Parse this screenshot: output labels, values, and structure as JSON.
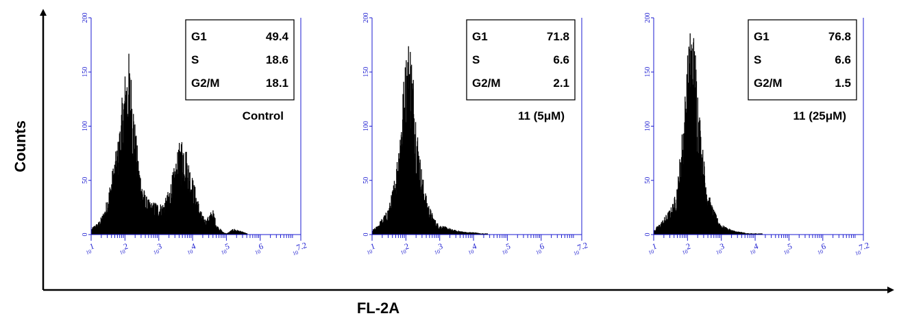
{
  "figure": {
    "ylabel": "Counts",
    "xlabel": "FL-2A"
  },
  "chart_data": [
    {
      "type": "area",
      "condition": "Control",
      "ylim": [
        0,
        200
      ],
      "y_ticks": [
        "0",
        "50",
        "100",
        "150",
        "200"
      ],
      "x_scale": "log",
      "xlim": [
        1,
        7.2
      ],
      "x_ticks": [
        {
          "base": "10",
          "exp": "1"
        },
        {
          "base": "10",
          "exp": "2"
        },
        {
          "base": "10",
          "exp": "3"
        },
        {
          "base": "10",
          "exp": "4"
        },
        {
          "base": "10",
          "exp": "5"
        },
        {
          "base": "10",
          "exp": "6"
        },
        {
          "base": "10",
          "exp": "7.2"
        }
      ],
      "x": [
        1.0,
        1.1,
        1.2,
        1.3,
        1.4,
        1.5,
        1.6,
        1.7,
        1.8,
        1.9,
        2.0,
        2.1,
        2.2,
        2.3,
        2.4,
        2.5,
        2.6,
        2.7,
        2.8,
        2.9,
        3.0,
        3.1,
        3.2,
        3.3,
        3.4,
        3.5,
        3.6,
        3.7,
        3.8,
        3.9,
        4.0,
        4.1,
        4.2,
        4.3,
        4.4,
        4.5,
        4.6,
        4.7,
        4.8,
        4.9,
        5.0,
        5.2,
        5.4,
        5.6
      ],
      "counts": [
        5,
        8,
        10,
        15,
        22,
        35,
        50,
        65,
        80,
        110,
        135,
        148,
        125,
        85,
        60,
        42,
        32,
        28,
        26,
        27,
        25,
        26,
        30,
        38,
        50,
        60,
        75,
        82,
        70,
        58,
        45,
        35,
        22,
        15,
        12,
        18,
        20,
        8,
        5,
        2,
        1,
        5,
        3,
        1
      ],
      "stats": [
        {
          "phase": "G1",
          "value": "49.4"
        },
        {
          "phase": "S",
          "value": "18.6"
        },
        {
          "phase": "G2/M",
          "value": "18.1"
        }
      ]
    },
    {
      "type": "area",
      "condition": "11 (5μM)",
      "ylim": [
        0,
        200
      ],
      "y_ticks": [
        "0",
        "50",
        "100",
        "150",
        "200"
      ],
      "x_scale": "log",
      "xlim": [
        1,
        7.2
      ],
      "x_ticks": [
        {
          "base": "10",
          "exp": "1"
        },
        {
          "base": "10",
          "exp": "2"
        },
        {
          "base": "10",
          "exp": "3"
        },
        {
          "base": "10",
          "exp": "4"
        },
        {
          "base": "10",
          "exp": "5"
        },
        {
          "base": "10",
          "exp": "6"
        },
        {
          "base": "10",
          "exp": "7.2"
        }
      ],
      "x": [
        1.0,
        1.1,
        1.2,
        1.3,
        1.4,
        1.5,
        1.6,
        1.7,
        1.8,
        1.9,
        2.0,
        2.1,
        2.2,
        2.3,
        2.4,
        2.5,
        2.6,
        2.7,
        2.8,
        2.9,
        3.0,
        3.2,
        3.4,
        3.6,
        3.8,
        4.0,
        4.2,
        4.4
      ],
      "counts": [
        4,
        6,
        10,
        14,
        18,
        25,
        38,
        55,
        85,
        120,
        150,
        165,
        135,
        95,
        65,
        45,
        30,
        22,
        15,
        10,
        8,
        6,
        4,
        3,
        2,
        2,
        1,
        1
      ],
      "stats": [
        {
          "phase": "G1",
          "value": "71.8"
        },
        {
          "phase": "S",
          "value": "6.6"
        },
        {
          "phase": "G2/M",
          "value": "2.1"
        }
      ]
    },
    {
      "type": "area",
      "condition": "11 (25μM)",
      "ylim": [
        0,
        200
      ],
      "y_ticks": [
        "0",
        "50",
        "100",
        "150",
        "200"
      ],
      "x_scale": "log",
      "xlim": [
        1,
        7.2
      ],
      "x_ticks": [
        {
          "base": "10",
          "exp": "1"
        },
        {
          "base": "10",
          "exp": "2"
        },
        {
          "base": "10",
          "exp": "3"
        },
        {
          "base": "10",
          "exp": "4"
        },
        {
          "base": "10",
          "exp": "5"
        },
        {
          "base": "10",
          "exp": "6"
        },
        {
          "base": "10",
          "exp": "7.2"
        }
      ],
      "x": [
        1.0,
        1.1,
        1.2,
        1.3,
        1.4,
        1.5,
        1.6,
        1.7,
        1.8,
        1.9,
        2.0,
        2.1,
        2.2,
        2.3,
        2.4,
        2.5,
        2.6,
        2.7,
        2.8,
        2.9,
        3.0,
        3.2,
        3.4,
        3.6,
        3.8,
        4.0,
        4.2
      ],
      "counts": [
        4,
        7,
        10,
        14,
        18,
        22,
        30,
        45,
        75,
        110,
        150,
        175,
        160,
        120,
        80,
        55,
        35,
        25,
        18,
        12,
        8,
        5,
        3,
        2,
        1,
        1,
        1
      ],
      "stats": [
        {
          "phase": "G1",
          "value": "76.8"
        },
        {
          "phase": "S",
          "value": "6.6"
        },
        {
          "phase": "G2/M",
          "value": "1.5"
        }
      ]
    }
  ],
  "colors": {
    "axis_blue": "#1a1ad0",
    "histogram": "#000000",
    "frame": "#000000"
  }
}
